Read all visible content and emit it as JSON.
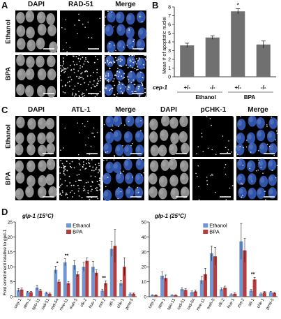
{
  "panels": {
    "A": {
      "letter": "A",
      "columns": [
        "DAPI",
        "RAD-51",
        "Merge"
      ],
      "rows": [
        "Ethanol",
        "BPA"
      ]
    },
    "B": {
      "letter": "B",
      "genotype_label": "cep-1",
      "group_labels": [
        "Ethanol",
        "BPA"
      ]
    },
    "C": {
      "letter": "C",
      "columns_left": [
        "DAPI",
        "ATL-1",
        "Merge"
      ],
      "columns_right": [
        "DAPI",
        "pCHK-1",
        "Merge"
      ],
      "rows": [
        "Ethanol",
        "BPA"
      ]
    },
    "D": {
      "letter": "D"
    }
  },
  "chart_data": [
    {
      "type": "bar",
      "panel": "B",
      "categories": [
        "+/-",
        "-/-",
        "+/-",
        "-/-"
      ],
      "groups": [
        "Ethanol",
        "Ethanol",
        "BPA",
        "BPA"
      ],
      "values": [
        3.6,
        4.5,
        7.5,
        3.7
      ],
      "errors": [
        0.25,
        0.2,
        0.3,
        0.4
      ],
      "ylabel": "Mean # of apoptotic nuclei",
      "ylim": [
        0,
        8
      ],
      "yticks": [
        0,
        1,
        2,
        3,
        4,
        5,
        6,
        7,
        8
      ],
      "significance": [
        "",
        "",
        "*",
        ""
      ],
      "color": "#707070"
    },
    {
      "type": "bar",
      "panel": "D-left",
      "title": "glp-1 (15°C)",
      "ylabel": "Fold enrichment relative to gpd-1",
      "ylim": [
        0,
        25
      ],
      "yticks": [
        0,
        5,
        10,
        15,
        20,
        25
      ],
      "categories": [
        "cep-1",
        "atm-1",
        "spo-11",
        "rad-51",
        "rad-54",
        "mre-11",
        "msh-5",
        "clk-2",
        "hus-1",
        "mrt-2",
        "atl-1",
        "chk-1",
        "prmt-5"
      ],
      "series": [
        {
          "name": "Ethanol",
          "color": "#7096d4",
          "values": [
            2.2,
            1.5,
            3.0,
            1.3,
            9.0,
            11.5,
            10.5,
            10.0,
            10.0,
            2.0,
            16.0,
            4.5,
            1.0
          ],
          "errors": [
            0.5,
            0.3,
            0.8,
            0.3,
            1.2,
            1.2,
            1.5,
            1.5,
            1.8,
            0.4,
            2.5,
            1.0,
            0.2
          ]
        },
        {
          "name": "BPA",
          "color": "#b83c3c",
          "values": [
            2.4,
            1.5,
            2.0,
            1.0,
            5.0,
            4.5,
            7.5,
            12.0,
            8.0,
            4.5,
            17.0,
            10.0,
            1.0
          ],
          "errors": [
            0.5,
            0.3,
            0.5,
            0.2,
            0.6,
            0.6,
            0.8,
            1.0,
            1.0,
            0.8,
            5.5,
            3.0,
            0.2
          ]
        }
      ],
      "significance": [
        "",
        "",
        "",
        "",
        "*",
        "**",
        "",
        "",
        "",
        "**",
        "",
        "",
        ""
      ]
    },
    {
      "type": "bar",
      "panel": "D-right",
      "title": "glp-1 (25°C)",
      "ylim": [
        0,
        50
      ],
      "yticks": [
        0,
        10,
        20,
        30,
        40,
        50
      ],
      "categories": [
        "cep-1",
        "atm-1",
        "spo-11",
        "rad-51",
        "rad-54",
        "mre-11",
        "msh-5",
        "clk-2",
        "hus-1",
        "mrt-2",
        "atl-1",
        "chk-1",
        "prmt-5"
      ],
      "series": [
        {
          "name": "Ethanol",
          "color": "#7096d4",
          "values": [
            1.0,
            14.0,
            1.0,
            5.0,
            3.0,
            11.0,
            29.0,
            5.0,
            1.5,
            37.0,
            4.0,
            2.0,
            3.0
          ],
          "errors": [
            0.3,
            2.5,
            0.3,
            1.0,
            0.8,
            2.5,
            5.0,
            1.0,
            0.4,
            12.0,
            0.8,
            0.4,
            0.6
          ]
        },
        {
          "name": "BPA",
          "color": "#b83c3c",
          "values": [
            1.0,
            12.5,
            1.0,
            4.5,
            3.5,
            15.0,
            27.0,
            6.0,
            2.0,
            31.0,
            11.5,
            3.0,
            2.5
          ],
          "errors": [
            0.3,
            2.0,
            0.3,
            0.8,
            0.8,
            4.0,
            6.0,
            1.0,
            0.5,
            8.0,
            1.5,
            0.5,
            0.5
          ]
        }
      ],
      "significance": [
        "",
        "",
        "",
        "",
        "",
        "",
        "",
        "",
        "",
        "",
        "**",
        "",
        ""
      ]
    }
  ]
}
